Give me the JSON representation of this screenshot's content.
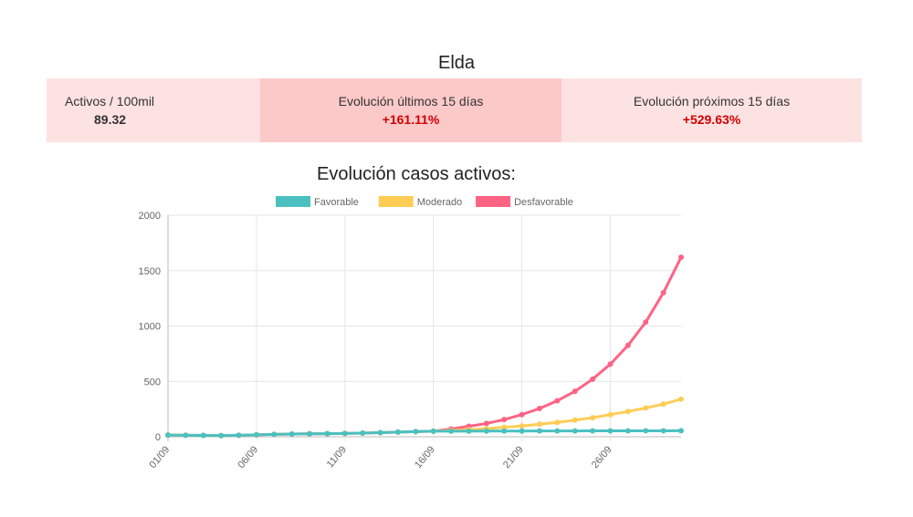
{
  "title": "Elda",
  "stats": [
    {
      "label": "Activos / 100mil",
      "value": "89.32"
    },
    {
      "label": "Evolución últimos 15 días",
      "value": "+161.11%"
    },
    {
      "label": "Evolución próximos 15 días",
      "value": "+529.63%"
    }
  ],
  "chart_data": {
    "type": "line",
    "title": "Evolución casos activos:",
    "x": [
      "01/09",
      "02/09",
      "03/09",
      "04/09",
      "05/09",
      "06/09",
      "07/09",
      "08/09",
      "09/09",
      "10/09",
      "11/09",
      "12/09",
      "13/09",
      "14/09",
      "15/09",
      "16/09",
      "17/09",
      "18/09",
      "19/09",
      "20/09",
      "21/09",
      "22/09",
      "23/09",
      "24/09",
      "25/09",
      "26/09",
      "27/09",
      "28/09",
      "29/09",
      "30/09"
    ],
    "xticks": [
      "01/09",
      "06/09",
      "11/09",
      "16/09",
      "21/09",
      "26/09"
    ],
    "ylim": [
      0,
      2000
    ],
    "yticks": [
      "0",
      "500",
      "1000",
      "1500",
      "2000"
    ],
    "grid": true,
    "legend": "top",
    "series": [
      {
        "name": "Favorable",
        "color": "#4bc0c0",
        "values": [
          15,
          13,
          12,
          10,
          13,
          18,
          22,
          25,
          27,
          28,
          30,
          33,
          37,
          42,
          46,
          50,
          50,
          50,
          51,
          51,
          51,
          52,
          52,
          52,
          53,
          53,
          53,
          54,
          54,
          55
        ]
      },
      {
        "name": "Moderado",
        "color": "#ffcd56",
        "values": [
          15,
          13,
          12,
          10,
          13,
          18,
          22,
          25,
          27,
          28,
          30,
          33,
          37,
          42,
          46,
          50,
          57,
          64,
          73,
          85,
          98,
          113,
          130,
          150,
          172,
          200,
          228,
          260,
          295,
          340
        ]
      },
      {
        "name": "Desfavorable",
        "color": "#ff6384",
        "values": [
          15,
          13,
          12,
          10,
          13,
          18,
          22,
          25,
          27,
          28,
          30,
          33,
          37,
          42,
          46,
          50,
          70,
          95,
          120,
          155,
          200,
          255,
          325,
          410,
          520,
          655,
          825,
          1035,
          1300,
          1620
        ]
      }
    ]
  }
}
